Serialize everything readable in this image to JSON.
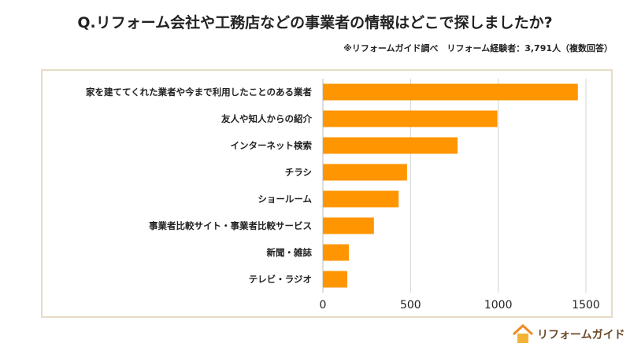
{
  "header": {
    "title": "Q.リフォーム会社や工務店などの事業者の情報はどこで探しましたか?",
    "subtitle": "※リフォームガイド調べ　リフォーム経験者：3,791人（複数回答）"
  },
  "brand": {
    "name": "リフォームガイド"
  },
  "chart_data": {
    "type": "bar",
    "orientation": "horizontal",
    "title": "Q.リフォーム会社や工務店などの事業者の情報はどこで探しましたか?",
    "categories": [
      "家を建ててくれた業者や今まで利用したことのある業者",
      "友人や知人からの紹介",
      "インターネット検索",
      "チラシ",
      "ショールーム",
      "事業者比較サイト・事業者比較サービス",
      "新聞・雑誌",
      "テレビ・ラジオ"
    ],
    "values": [
      1454,
      995,
      768,
      480,
      432,
      291,
      148,
      139
    ],
    "xlim": [
      0,
      1500
    ],
    "xticks": [
      0,
      500,
      1000,
      1500
    ],
    "grid": true,
    "colors": {
      "bar": "#ff9500",
      "grid": "#d4d4d4"
    }
  }
}
